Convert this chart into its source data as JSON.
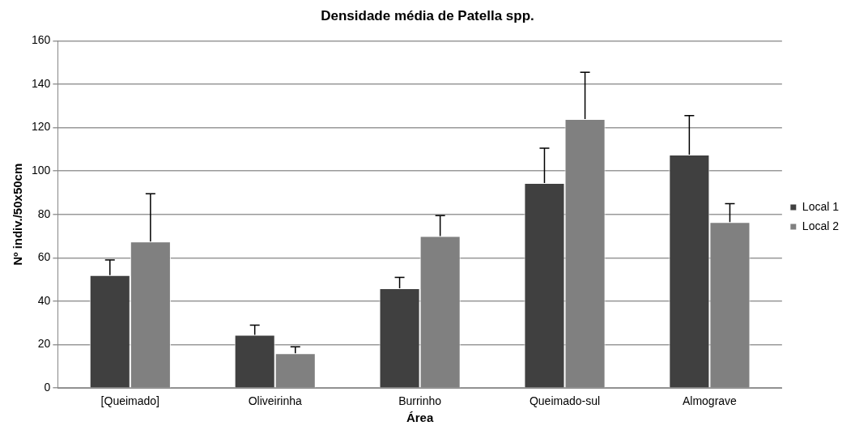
{
  "chart_data": {
    "type": "bar",
    "title": "Densidade média de Patella spp.",
    "xlabel": "Área",
    "ylabel": "Nº indiv./50x50cm",
    "categories": [
      "[Queimado]",
      "Oliveirinha",
      "Burrinho",
      "Queimado-sul",
      "Almograve"
    ],
    "series": [
      {
        "name": "Local 1",
        "color": "#404040",
        "values": [
          52,
          24.5,
          46,
          94.5,
          107.5
        ],
        "errors": [
          [
            52,
            59
          ],
          [
            24.5,
            29
          ],
          [
            46,
            51
          ],
          [
            94.5,
            110.5
          ],
          [
            107.5,
            125.5
          ]
        ]
      },
      {
        "name": "Local 2",
        "color": "#808080",
        "values": [
          67.5,
          16,
          70,
          124,
          76.5
        ],
        "errors": [
          [
            67.5,
            89.5
          ],
          [
            16,
            19
          ],
          [
            70,
            79.5
          ],
          [
            124,
            145.5
          ],
          [
            76.5,
            85
          ]
        ]
      }
    ],
    "ylim": [
      0,
      160
    ],
    "yticks": [
      0,
      20,
      40,
      60,
      80,
      100,
      120,
      140,
      160
    ],
    "grid": "y",
    "legend": "right"
  }
}
